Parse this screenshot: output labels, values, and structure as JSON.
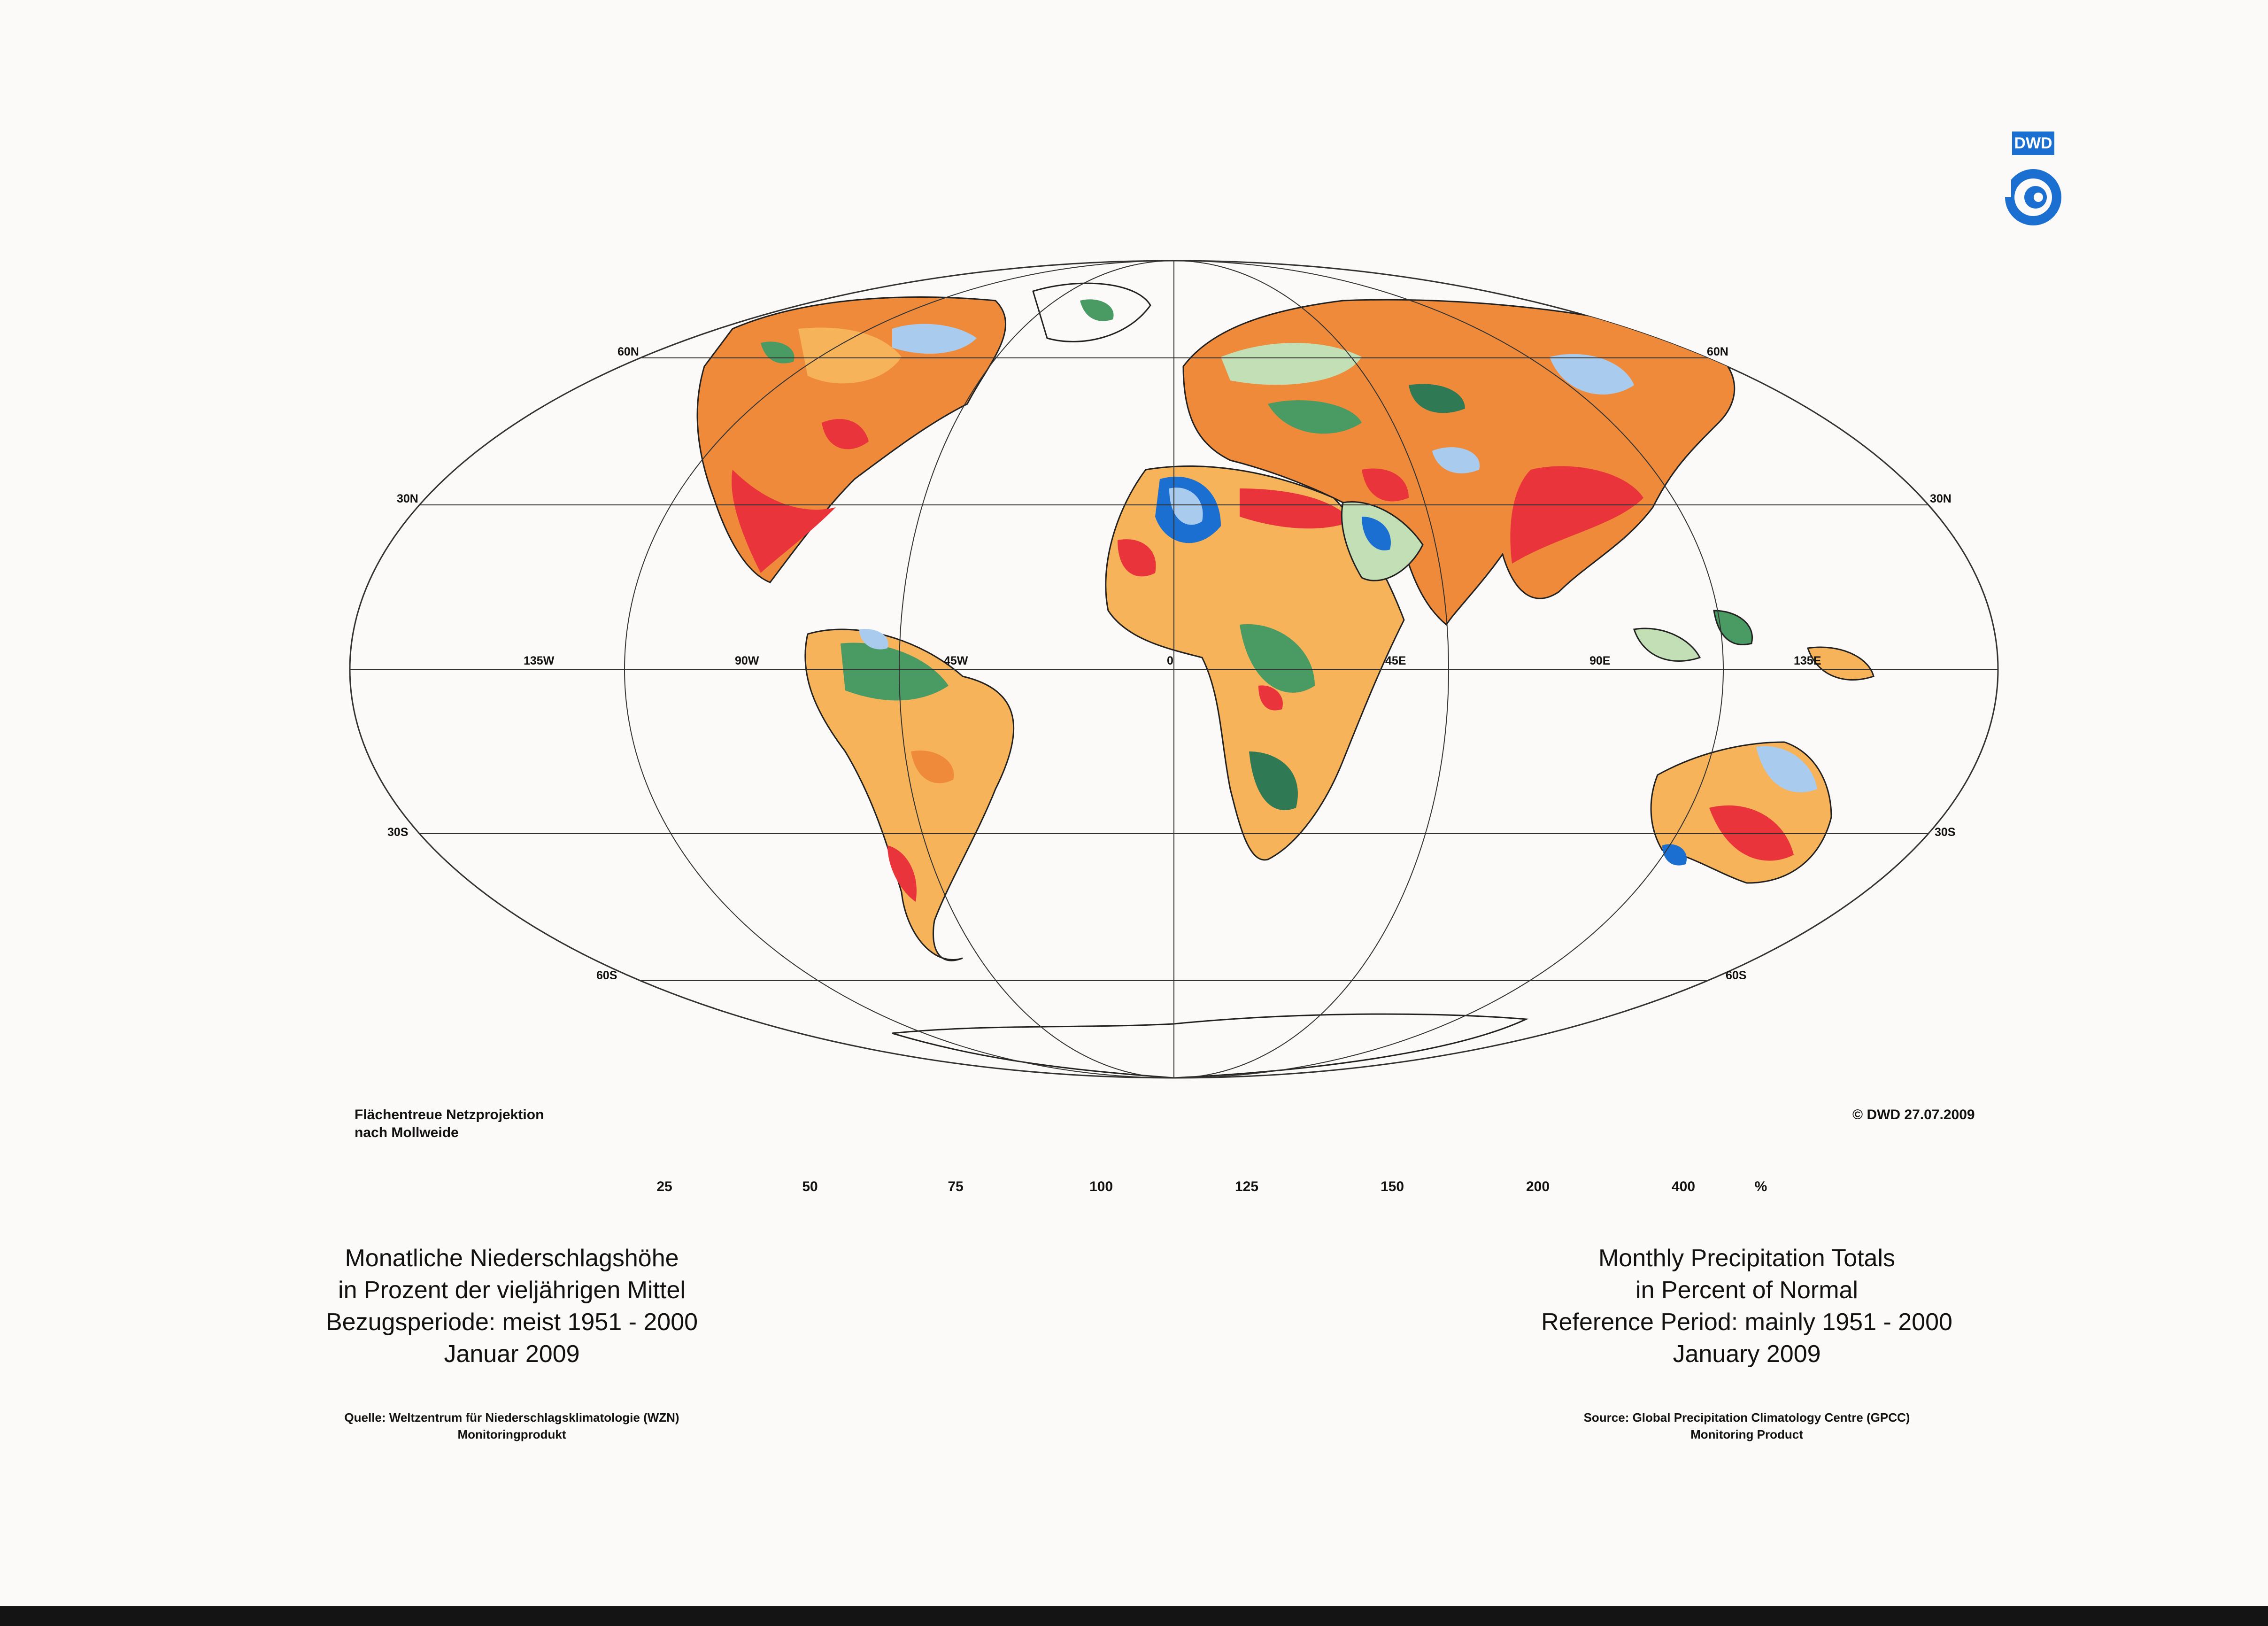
{
  "projection": {
    "line1": "Flächentreue Netzprojektion",
    "line2": "nach Mollweide"
  },
  "copyright": "© DWD 27.07.2009",
  "logo": {
    "text": "DWD",
    "icon": "dwd-spiral-logo",
    "color": "#1a6fd0"
  },
  "grid_labels": {
    "lat_60n_left": "60N",
    "lat_60n_right": "60N",
    "lat_30n_left": "30N",
    "lat_30n_right": "30N",
    "lat_30s_left": "30S",
    "lat_30s_right": "30S",
    "lat_60s_left": "60S",
    "lat_60s_right": "60S",
    "lon_135w": "135W",
    "lon_90w": "90W",
    "lon_45w": "45W",
    "lon_0": "0",
    "lon_45e": "45E",
    "lon_90e": "90E",
    "lon_135e": "135E"
  },
  "legend": {
    "ticks": [
      "25",
      "50",
      "75",
      "100",
      "125",
      "150",
      "200",
      "400"
    ],
    "unit": "%",
    "colors": [
      "#e8343a",
      "#ef8a3a",
      "#f6b35a",
      "#f5df98",
      "#c2dfb6",
      "#4a9a63",
      "#2f7a54",
      "#a9cbee",
      "#1a6fd0"
    ]
  },
  "title_de": {
    "line1": "Monatliche Niederschlagshöhe",
    "line2": "in Prozent der vieljährigen Mittel",
    "line3": "Bezugsperiode: meist 1951 - 2000",
    "line4": "Januar 2009"
  },
  "title_en": {
    "line1": "Monthly Precipitation Totals",
    "line2": "in Percent of Normal",
    "line3": "Reference Period: mainly 1951 - 2000",
    "line4": "January 2009"
  },
  "source_de": {
    "line1": "Quelle: Weltzentrum für Niederschlagsklimatologie (WZN)",
    "line2": "Monitoringprodukt"
  },
  "source_en": {
    "line1": "Source: Global Precipitation Climatology Centre (GPCC)",
    "line2": "Monitoring Product"
  }
}
